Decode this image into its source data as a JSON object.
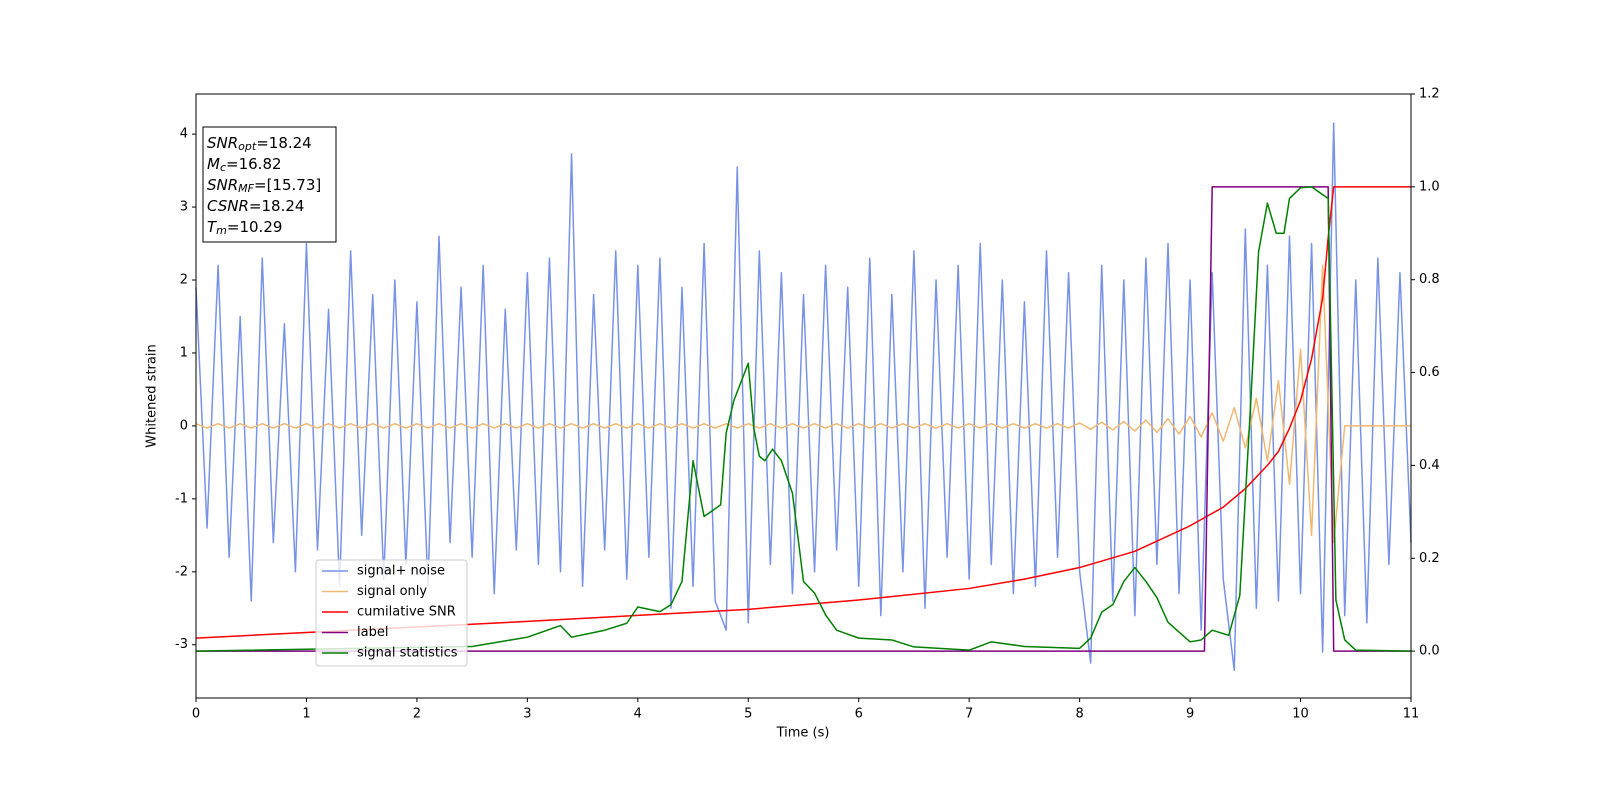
{
  "chart_data": {
    "type": "line",
    "xlabel": "Time (s)",
    "ylabel": "Whitened strain",
    "xlim": [
      0,
      11
    ],
    "xticks": [
      0,
      1,
      2,
      3,
      4,
      5,
      6,
      7,
      8,
      9,
      10,
      11
    ],
    "ylim": [
      -3.73,
      4.55
    ],
    "yticks": [
      -3,
      -2,
      -1,
      0,
      1,
      2,
      3,
      4
    ],
    "y2lim": [
      -0.101,
      1.2
    ],
    "y2ticks": [
      {
        "value": 0,
        "label": "0.0"
      },
      {
        "value": 0.2,
        "label": "0.2"
      },
      {
        "value": 0.4,
        "label": "0.4"
      },
      {
        "value": 0.6,
        "label": "0.6"
      },
      {
        "value": 0.8,
        "label": "0.8"
      },
      {
        "value": 1.0,
        "label": "1.0"
      },
      {
        "value": 1.2,
        "label": "1.2"
      }
    ],
    "legend_loc": "lower left",
    "annotations": [
      [
        "SNR",
        "opt",
        "=18.24"
      ],
      [
        "M",
        "c",
        "=16.82"
      ],
      [
        "SNR",
        "MF",
        "=[15.73]"
      ],
      [
        "CSNR",
        "",
        "=18.24"
      ],
      [
        "T",
        "m",
        "=10.29"
      ]
    ],
    "x": [
      0,
      0.1,
      0.2,
      0.3,
      0.4,
      0.5,
      0.6,
      0.7,
      0.8,
      0.9,
      1,
      1.1,
      1.2,
      1.3,
      1.4,
      1.5,
      1.6,
      1.7,
      1.8,
      1.9,
      2,
      2.1,
      2.2,
      2.3,
      2.4,
      2.5,
      2.6,
      2.7,
      2.8,
      2.9,
      3,
      3.1,
      3.2,
      3.3,
      3.4,
      3.5,
      3.6,
      3.7,
      3.8,
      3.9,
      4,
      4.1,
      4.2,
      4.3,
      4.4,
      4.5,
      4.6,
      4.7,
      4.8,
      4.9,
      5,
      5.1,
      5.2,
      5.3,
      5.4,
      5.5,
      5.6,
      5.7,
      5.8,
      5.9,
      6,
      6.1,
      6.2,
      6.3,
      6.4,
      6.5,
      6.6,
      6.7,
      6.8,
      6.9,
      7,
      7.1,
      7.2,
      7.3,
      7.4,
      7.5,
      7.6,
      7.7,
      7.8,
      7.9,
      8,
      8.1,
      8.2,
      8.3,
      8.4,
      8.5,
      8.6,
      8.7,
      8.8,
      8.9,
      9,
      9.1,
      9.2,
      9.3,
      9.4,
      9.5,
      9.6,
      9.7,
      9.8,
      9.9,
      10,
      10.1,
      10.2,
      10.3,
      10.4,
      10.5,
      10.6,
      10.7,
      10.8,
      10.9,
      11
    ],
    "series": [
      {
        "name": "signal+ noise",
        "color": "#7893e6",
        "axis": "y",
        "values": [
          1.9,
          -1.4,
          2.2,
          -1.8,
          1.5,
          -2.4,
          2.3,
          -1.6,
          1.4,
          -2.0,
          2.5,
          -1.7,
          1.6,
          -2.2,
          2.4,
          -1.5,
          1.8,
          -2.1,
          2.0,
          -1.9,
          1.7,
          -2.2,
          2.6,
          -1.6,
          1.9,
          -1.8,
          2.2,
          -2.3,
          1.6,
          -1.7,
          2.1,
          -1.9,
          2.3,
          -2.0,
          3.73,
          -2.2,
          1.8,
          -1.7,
          2.4,
          -2.1,
          2.2,
          -1.8,
          2.3,
          -2.5,
          1.9,
          -2.2,
          2.5,
          -2.4,
          -2.8,
          3.55,
          -2.7,
          2.4,
          -1.9,
          2.1,
          -2.3,
          1.8,
          -2.0,
          2.2,
          -1.7,
          1.9,
          -2.2,
          2.3,
          -2.6,
          1.8,
          -2.0,
          2.4,
          -2.5,
          2.0,
          -1.8,
          2.2,
          -2.1,
          2.5,
          -1.9,
          2.0,
          -2.3,
          1.7,
          -2.2,
          2.4,
          -1.8,
          2.1,
          -2.0,
          -3.25,
          2.2,
          -2.4,
          2.0,
          -2.6,
          2.3,
          -1.9,
          2.5,
          -2.3,
          2.0,
          -2.8,
          2.1,
          -2.1,
          -3.35,
          2.7,
          -2.5,
          2.2,
          -2.4,
          2.6,
          -2.3,
          2.5,
          -3.1,
          4.15,
          -2.6,
          2.0,
          -2.7,
          2.3,
          -1.9,
          2.1,
          -1.6
        ]
      },
      {
        "name": "signal only",
        "color": "#f0b870",
        "axis": "y",
        "values": [
          0.03,
          -0.03,
          0.03,
          -0.03,
          0.03,
          -0.03,
          0.03,
          -0.03,
          0.03,
          -0.03,
          0.03,
          -0.03,
          0.03,
          -0.03,
          0.03,
          -0.03,
          0.03,
          -0.03,
          0.03,
          -0.03,
          0.03,
          -0.03,
          0.03,
          -0.03,
          0.03,
          -0.03,
          0.03,
          -0.03,
          0.03,
          -0.03,
          0.03,
          -0.03,
          0.03,
          -0.03,
          0.03,
          -0.03,
          0.03,
          -0.03,
          0.03,
          -0.03,
          0.03,
          -0.03,
          0.03,
          -0.03,
          0.03,
          -0.03,
          0.03,
          -0.03,
          0.03,
          -0.03,
          0.03,
          -0.03,
          0.03,
          -0.03,
          0.03,
          -0.03,
          0.03,
          -0.03,
          0.03,
          -0.03,
          0.03,
          -0.03,
          0.03,
          -0.03,
          0.03,
          -0.03,
          0.03,
          -0.03,
          0.03,
          -0.03,
          0.03,
          -0.03,
          0.03,
          -0.03,
          0.03,
          -0.03,
          0.03,
          -0.03,
          0.03,
          -0.03,
          0.04,
          -0.045,
          0.05,
          -0.055,
          0.06,
          -0.07,
          0.08,
          -0.09,
          0.1,
          -0.11,
          0.13,
          -0.15,
          0.18,
          -0.21,
          0.25,
          -0.3,
          0.38,
          -0.48,
          0.62,
          -0.8,
          1.05,
          -1.5,
          2.2,
          -1.6,
          0,
          0,
          0,
          0,
          0,
          0,
          0
        ]
      },
      {
        "name": "cumilative SNR",
        "color": "#ff0000",
        "axis": "y2",
        "x": [
          0,
          1,
          2,
          3,
          4,
          5,
          6,
          7,
          7.5,
          8,
          8.5,
          9,
          9.3,
          9.5,
          9.7,
          9.8,
          9.9,
          10,
          10.1,
          10.2,
          10.25,
          10.3,
          11
        ],
        "values": [
          0.028,
          0.04,
          0.052,
          0.064,
          0.077,
          0.09,
          0.11,
          0.135,
          0.155,
          0.18,
          0.215,
          0.27,
          0.31,
          0.35,
          0.4,
          0.43,
          0.48,
          0.54,
          0.63,
          0.76,
          0.89,
          1.0,
          1.0
        ]
      },
      {
        "name": "label",
        "color": "#800080",
        "axis": "y2",
        "x": [
          0,
          9.13,
          9.2,
          10.25,
          10.3,
          11
        ],
        "values": [
          0,
          0,
          1,
          1,
          0,
          0
        ]
      },
      {
        "name": "signal statistics",
        "color": "#008000",
        "axis": "y2",
        "x": [
          0,
          2.5,
          3,
          3.3,
          3.4,
          3.7,
          3.9,
          4,
          4.2,
          4.3,
          4.4,
          4.5,
          4.6,
          4.75,
          4.8,
          4.87,
          5,
          5.05,
          5.1,
          5.15,
          5.22,
          5.3,
          5.4,
          5.5,
          5.6,
          5.7,
          5.8,
          6,
          6.3,
          6.5,
          7,
          7.2,
          7.5,
          8,
          8.1,
          8.2,
          8.3,
          8.4,
          8.5,
          8.6,
          8.7,
          8.8,
          9,
          9.1,
          9.2,
          9.35,
          9.45,
          9.55,
          9.62,
          9.7,
          9.78,
          9.85,
          9.9,
          10,
          10.1,
          10.25,
          10.32,
          10.4,
          10.5,
          11
        ],
        "values": [
          0,
          0.01,
          0.03,
          0.055,
          0.03,
          0.045,
          0.06,
          0.095,
          0.085,
          0.1,
          0.15,
          0.41,
          0.29,
          0.315,
          0.47,
          0.54,
          0.62,
          0.48,
          0.42,
          0.41,
          0.435,
          0.41,
          0.34,
          0.15,
          0.125,
          0.078,
          0.045,
          0.028,
          0.024,
          0.009,
          0.002,
          0.02,
          0.01,
          0.006,
          0.028,
          0.084,
          0.1,
          0.15,
          0.18,
          0.15,
          0.115,
          0.062,
          0.02,
          0.024,
          0.045,
          0.034,
          0.12,
          0.54,
          0.86,
          0.965,
          0.9,
          0.9,
          0.975,
          0.998,
          1.0,
          0.975,
          0.11,
          0.024,
          0.002,
          0
        ]
      }
    ]
  }
}
